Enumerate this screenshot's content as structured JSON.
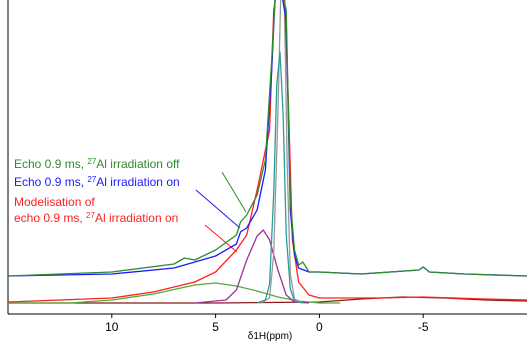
{
  "chart_data": {
    "type": "line",
    "xlabel": "δ1H(ppm)",
    "xlim": [
      15,
      -10
    ],
    "xticks": [
      10,
      5,
      0,
      -5
    ],
    "ylim": [
      0,
      314
    ],
    "annotations": [
      {
        "color": "#2e8b2e",
        "parts": [
          "Echo 0.9 ms, ",
          "27",
          "Al irradiation off"
        ]
      },
      {
        "color": "#1a1aff",
        "parts": [
          "Echo 0.9 ms, ",
          "27",
          "Al irradiation on"
        ]
      },
      {
        "color": "#ff2020",
        "parts": [
          "Modelisation of"
        ]
      },
      {
        "color": "#ff2020",
        "parts": [
          "echo 0.9 ms, ",
          "27",
          "Al irradiation on"
        ]
      }
    ],
    "series": [
      {
        "color": "#8b1a1a",
        "x": [
          15,
          5,
          0,
          -2,
          -4,
          -6,
          -8,
          -10
        ],
        "values": [
          11,
          11,
          12,
          15,
          17,
          16,
          14,
          13
        ]
      },
      {
        "color": "#55aa33",
        "x": [
          15,
          12,
          10,
          8,
          6,
          5,
          4,
          3,
          2,
          1,
          0,
          -1
        ],
        "values": [
          11,
          11,
          14,
          20,
          29,
          31,
          28,
          23,
          17,
          13,
          11,
          11
        ]
      },
      {
        "color": "#993399",
        "x": [
          6,
          4.5,
          4,
          3.5,
          3,
          2.7,
          2.4,
          2,
          1.6,
          1.2,
          0.5
        ],
        "values": [
          11,
          14,
          24,
          54,
          78,
          84,
          74,
          44,
          19,
          12,
          11
        ]
      },
      {
        "color": "#999999",
        "x": [
          2.8,
          2.4,
          2.2,
          2,
          1.85,
          1.7,
          1.55,
          1.4,
          1.2,
          0.8
        ],
        "values": [
          11,
          16,
          60,
          200,
          330,
          330,
          150,
          40,
          15,
          11
        ]
      },
      {
        "color": "#2a9d9d",
        "x": [
          3,
          2.6,
          2.4,
          2.2,
          2.05,
          1.9,
          1.75,
          1.6,
          1.4,
          1.2,
          0.8
        ],
        "values": [
          11,
          14,
          30,
          120,
          230,
          262,
          200,
          80,
          25,
          13,
          11
        ]
      },
      {
        "color": "#ff2020",
        "x": [
          15,
          10,
          8,
          6,
          5,
          4,
          3.5,
          3,
          2.4,
          2.2,
          2,
          1.7,
          1.5,
          1.3,
          1,
          0.5,
          0,
          -3,
          -5,
          -8,
          -10
        ],
        "values": [
          12,
          16,
          22,
          32,
          42,
          64,
          79,
          124,
          184,
          304,
          330,
          330,
          214,
          74,
          32,
          19,
          16,
          16,
          17,
          15,
          14
        ]
      },
      {
        "color": "#1a1aff",
        "x": [
          15,
          10,
          7,
          5,
          4,
          3.8,
          3.5,
          3,
          2.6,
          2.3,
          2.1,
          1.9,
          1.6,
          1.4,
          1.2,
          1,
          0.5,
          0,
          -2,
          -4.8,
          -5,
          -5.3,
          -7,
          -10
        ],
        "values": [
          38,
          40,
          46,
          58,
          70,
          82,
          86,
          104,
          144,
          244,
          330,
          330,
          294,
          104,
          59,
          46,
          42,
          42,
          40,
          44,
          47,
          42,
          40,
          38
        ]
      },
      {
        "color": "#2e8b2e",
        "x": [
          15,
          10,
          7,
          6.5,
          6,
          5,
          4,
          3.8,
          3.5,
          3,
          2.6,
          2.3,
          2.1,
          1.9,
          1.6,
          1.4,
          1.2,
          1,
          0.8,
          0.5,
          0,
          -2,
          -4.8,
          -5,
          -5.3,
          -7,
          -10
        ],
        "values": [
          38,
          42,
          50,
          56,
          54,
          64,
          79,
          92,
          99,
          119,
          154,
          254,
          330,
          330,
          304,
          114,
          64,
          49,
          52,
          42,
          42,
          40,
          44,
          47,
          42,
          40,
          38
        ]
      }
    ]
  }
}
